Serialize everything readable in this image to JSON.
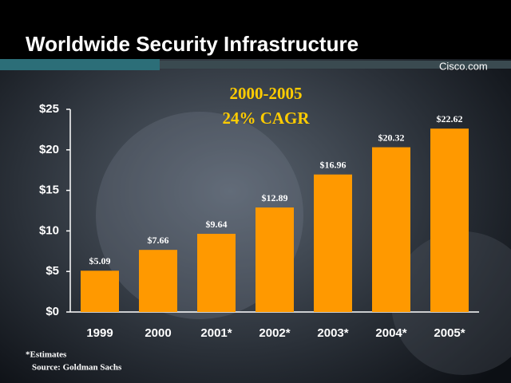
{
  "chart_data": {
    "type": "bar",
    "title": "Worldwide Security Infrastructure",
    "brand": "Cisco.com",
    "annotations": [
      "2000-2005",
      "24% CAGR"
    ],
    "footnotes": [
      "*Estimates",
      "Source: Goldman Sachs"
    ],
    "categories": [
      "1999",
      "2000",
      "2001*",
      "2002*",
      "2003*",
      "2004*",
      "2005*"
    ],
    "values": [
      5.09,
      7.66,
      9.64,
      12.89,
      16.96,
      20.32,
      22.62
    ],
    "value_labels": [
      "$5.09",
      "$7.66",
      "$9.64",
      "$12.89",
      "$16.96",
      "$20.32",
      "$22.62"
    ],
    "color": "#ff9900",
    "ylim": [
      0,
      25
    ],
    "yticks": [
      {
        "value": 0,
        "label": "$0"
      },
      {
        "value": 5,
        "label": "$5"
      },
      {
        "value": 10,
        "label": "$10"
      },
      {
        "value": 15,
        "label": "$15"
      },
      {
        "value": 20,
        "label": "$20"
      },
      {
        "value": 25,
        "label": "$25"
      }
    ]
  }
}
